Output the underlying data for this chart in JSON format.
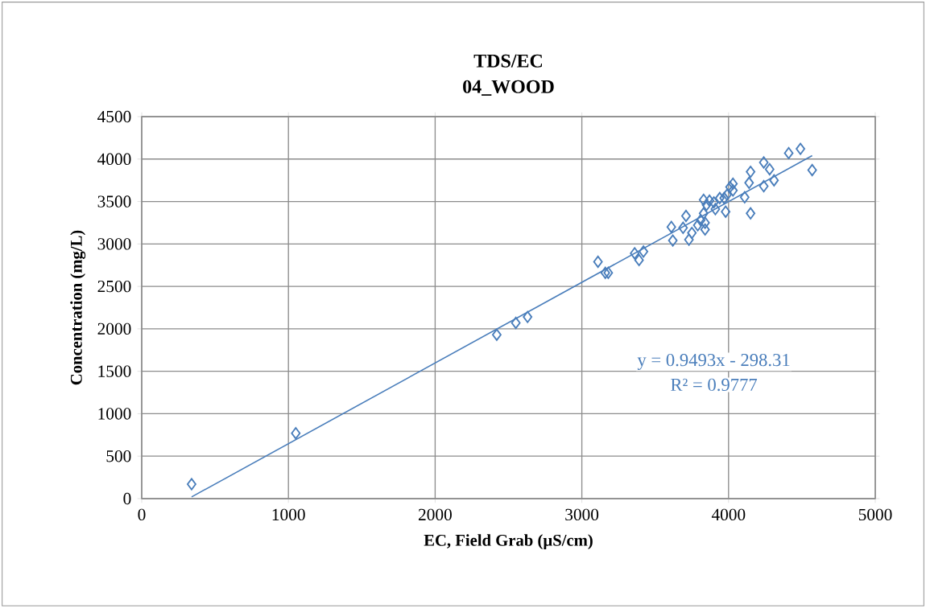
{
  "chart_data": {
    "type": "scatter",
    "title": "TDS/EC",
    "subtitle": "04_WOOD",
    "xlabel": "EC, Field Grab (µS/cm)",
    "ylabel": "Concentration (mg/L)",
    "annotations": [
      "y = 0.9493x - 298.31",
      "R² = 0.9777"
    ],
    "xlim": [
      0,
      5000
    ],
    "ylim": [
      0,
      4500
    ],
    "xticks": [
      0,
      1000,
      2000,
      3000,
      4000,
      5000
    ],
    "yticks": [
      0,
      500,
      1000,
      1500,
      2000,
      2500,
      3000,
      3500,
      4000,
      4500
    ],
    "grid": true,
    "marker": "diamond",
    "series": [
      {
        "color": "#4a7ebb",
        "x": [
          340,
          1050,
          2420,
          2550,
          2630,
          3110,
          3160,
          3180,
          3360,
          3390,
          3420,
          3610,
          3620,
          3690,
          3710,
          3730,
          3750,
          3790,
          3810,
          3830,
          3830,
          3840,
          3840,
          3850,
          3870,
          3900,
          3910,
          3940,
          3970,
          3980,
          3990,
          4010,
          4030,
          4030,
          4110,
          4140,
          4150,
          4150,
          4240,
          4240,
          4280,
          4310,
          4410,
          4490,
          4570
        ],
        "values": [
          170,
          770,
          1930,
          2070,
          2140,
          2790,
          2660,
          2660,
          2890,
          2810,
          2910,
          3200,
          3040,
          3190,
          3330,
          3050,
          3130,
          3220,
          3280,
          3520,
          3360,
          3250,
          3170,
          3460,
          3510,
          3490,
          3410,
          3540,
          3540,
          3380,
          3580,
          3670,
          3710,
          3630,
          3550,
          3720,
          3850,
          3360,
          3960,
          3680,
          3880,
          3750,
          4070,
          4120,
          3870
        ]
      },
      {
        "type": "line",
        "color": "#4a7ebb",
        "marker": "none",
        "x": [
          340,
          4570
        ],
        "values": [
          20,
          4040
        ]
      }
    ]
  }
}
